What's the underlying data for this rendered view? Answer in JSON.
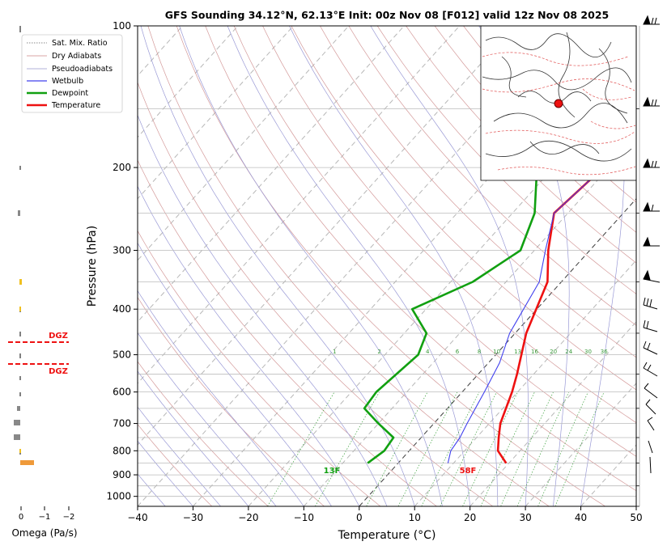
{
  "chart_data": {
    "type": "line",
    "title": "GFS Sounding 34.12°N, 62.13°E Init: 00z Nov 08 [F012] valid 12z Nov 08 2025",
    "xlabel": "Temperature (°C)",
    "ylabel": "Pressure (hPa)",
    "xlim": [
      -40,
      50
    ],
    "ylim": [
      1050,
      100
    ],
    "y_scale": "log",
    "x_ticks": [
      "−40",
      "−30",
      "−20",
      "−10",
      "0",
      "10",
      "20",
      "30",
      "40",
      "50"
    ],
    "y_ticks": [
      "100",
      "200",
      "300",
      "400",
      "500",
      "600",
      "700",
      "800",
      "900",
      "1000"
    ],
    "legend": {
      "placement": "top-left",
      "entries": [
        "Sat. Mix. Ratio",
        "Dry Adiabats",
        "Pseudoadiabats",
        "Wetbulb",
        "Dewpoint",
        "Temperature"
      ]
    },
    "series": [
      {
        "name": "Temperature",
        "color": "#ee1111",
        "points": [
          [
            19.5,
            850
          ],
          [
            16,
            800
          ],
          [
            14,
            750
          ],
          [
            12,
            700
          ],
          [
            9,
            600
          ],
          [
            7,
            550
          ],
          [
            2,
            450
          ],
          [
            -2.5,
            350
          ],
          [
            -7.5,
            300
          ],
          [
            -12.5,
            250
          ],
          [
            -11,
            200
          ],
          [
            -10,
            150
          ],
          [
            -9,
            100
          ]
        ]
      },
      {
        "name": "Dewpoint",
        "color": "#11a011",
        "points": [
          [
            -5.5,
            850
          ],
          [
            -4.5,
            800
          ],
          [
            -5,
            750
          ],
          [
            -10,
            700
          ],
          [
            -15,
            650
          ],
          [
            -15.5,
            600
          ],
          [
            -14,
            500
          ],
          [
            -16,
            450
          ],
          [
            -22.5,
            400
          ],
          [
            -16,
            350
          ],
          [
            -12.5,
            300
          ],
          [
            -16,
            250
          ],
          [
            -23,
            200
          ],
          [
            -26.5,
            150
          ],
          [
            -21,
            100
          ]
        ]
      },
      {
        "name": "Wetbulb",
        "color": "#4040ee",
        "points": [
          [
            9,
            850
          ],
          [
            7.5,
            800
          ],
          [
            7,
            750
          ],
          [
            6,
            700
          ],
          [
            4,
            600
          ],
          [
            2,
            520
          ],
          [
            -1,
            450
          ],
          [
            -4,
            350
          ],
          [
            -8,
            300
          ],
          [
            -12.5,
            250
          ],
          [
            -11,
            200
          ],
          [
            -10,
            150
          ],
          [
            -9,
            100
          ]
        ]
      }
    ],
    "annotations": {
      "surface_temp": "58F",
      "surface_dewpoint": "13F"
    },
    "mix_ratio_labels": [
      "1",
      "2",
      "4",
      "6",
      "8",
      "10",
      "13",
      "16",
      "20",
      "24",
      "30",
      "36"
    ],
    "omega": {
      "xlabel": "Omega (Pa/s)",
      "ticks": [
        "0",
        "−1",
        "−2"
      ],
      "dgz_label": "DGZ"
    },
    "colors": {
      "temperature": "#ee1111",
      "dewpoint": "#11a011",
      "wetbulb": "#4040ee",
      "dgz": "#ee1111",
      "omega_bar": "#ef9a3a"
    }
  }
}
